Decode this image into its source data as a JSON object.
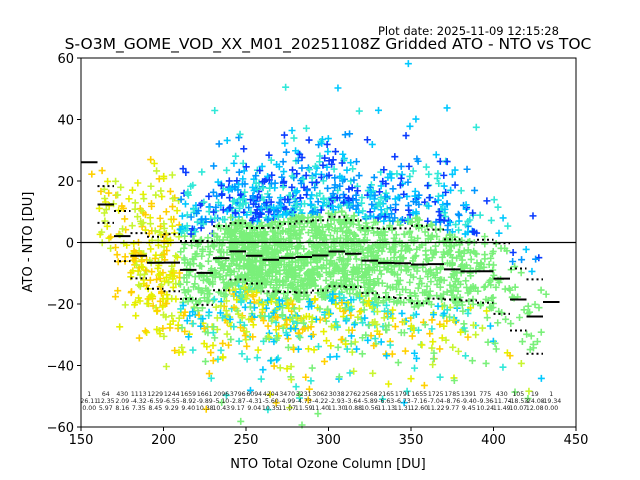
{
  "chart_data": {
    "type": "scatter",
    "title": "S-O3M_GOME_VOD_XX_M01_20251108Z Gridded ATO - NTO vs TOC",
    "subtitle": "Plot date: 2025-11-09 12:15:28",
    "xlabel": "NTO Total Ozone Column [DU]",
    "ylabel": "ATO - NTO [DU]",
    "xlim": [
      150,
      450
    ],
    "ylim": [
      -60,
      60
    ],
    "xticks": [
      150,
      200,
      250,
      300,
      350,
      400,
      450
    ],
    "yticks": [
      -60,
      -40,
      -20,
      0,
      20,
      40,
      60
    ],
    "zero_line": 0,
    "marker": "+",
    "colors": {
      "scatter_palette": [
        "#0a3cff",
        "#0096ff",
        "#00c8ff",
        "#30e8d8",
        "#7af07a",
        "#c8f530",
        "#e6f000",
        "#ffd000"
      ],
      "mean": "#000000",
      "axes": "#000000"
    },
    "bins": {
      "edges_start": 150,
      "width": 10,
      "centers": [
        155,
        165,
        175,
        185,
        195,
        205,
        215,
        225,
        235,
        245,
        255,
        265,
        275,
        285,
        295,
        305,
        315,
        325,
        335,
        345,
        355,
        365,
        375,
        385,
        395,
        405,
        415,
        425,
        435
      ],
      "counts": [
        1,
        64,
        430,
        1113,
        1229,
        1244,
        1659,
        1661,
        2096,
        3796,
        6094,
        4204,
        3470,
        3231,
        3062,
        3038,
        2762,
        2568,
        2165,
        1791,
        1655,
        1725,
        1785,
        1391,
        775,
        430,
        105,
        19,
        1
      ],
      "mean": [
        26.11,
        12.35,
        2.09,
        -4.32,
        -6.59,
        -6.55,
        -8.92,
        -9.89,
        -5.1,
        -2.87,
        -4.31,
        -5.6,
        -4.99,
        -4.73,
        -4.22,
        -2.93,
        -3.64,
        -5.89,
        -6.63,
        -6.73,
        -7.16,
        -7.04,
        -8.76,
        -9.4,
        -9.36,
        -11.74,
        -18.53,
        -24.08,
        -19.34
      ],
      "std": [
        0.0,
        5.97,
        8.16,
        7.35,
        8.45,
        9.29,
        9.4,
        10.38,
        10.43,
        9.17,
        9.04,
        10.35,
        11.07,
        11.59,
        11.4,
        11.3,
        10.88,
        10.56,
        11.13,
        11.31,
        12.6,
        11.22,
        9.77,
        9.45,
        10.24,
        11.49,
        10.07,
        12.08,
        0.0
      ],
      "count_labels": [
        "1",
        "64",
        "430",
        "1113",
        "1229",
        "1244",
        "1659",
        "1661",
        "2096",
        "3796",
        "6094",
        "4204",
        "3470",
        "3231",
        "3062",
        "3038",
        "2762",
        "2568",
        "2165",
        "1791",
        "1655",
        "1725",
        "1785",
        "1391",
        "775",
        "430",
        "105",
        "19",
        "1"
      ],
      "mean_labels": [
        "26.11",
        "12.35",
        "2.09",
        "-4.32",
        "-6.59",
        "-6.55",
        "-8.92",
        "-9.89",
        "-5.10",
        "-2.87",
        "-4.31",
        "-5.60",
        "-4.99",
        "-4.73",
        "-4.22",
        "-2.93",
        "-3.64",
        "-5.89",
        "-6.63",
        "-6.73",
        "-7.16",
        "-7.04",
        "-8.76",
        "-9.40",
        "-9.36",
        "-11.74",
        "-18.53",
        "-24.08",
        "-19.34"
      ],
      "std_labels": [
        "0.00",
        "5.97",
        "8.16",
        "7.35",
        "8.45",
        "9.29",
        "9.40",
        "10.38",
        "10.43",
        "9.17",
        "9.04",
        "10.35",
        "11.07",
        "11.59",
        "11.40",
        "11.30",
        "10.88",
        "10.56",
        "11.13",
        "11.31",
        "12.60",
        "11.22",
        "9.77",
        "9.45",
        "10.24",
        "11.49",
        "10.07",
        "12.08",
        "0.00"
      ]
    }
  }
}
